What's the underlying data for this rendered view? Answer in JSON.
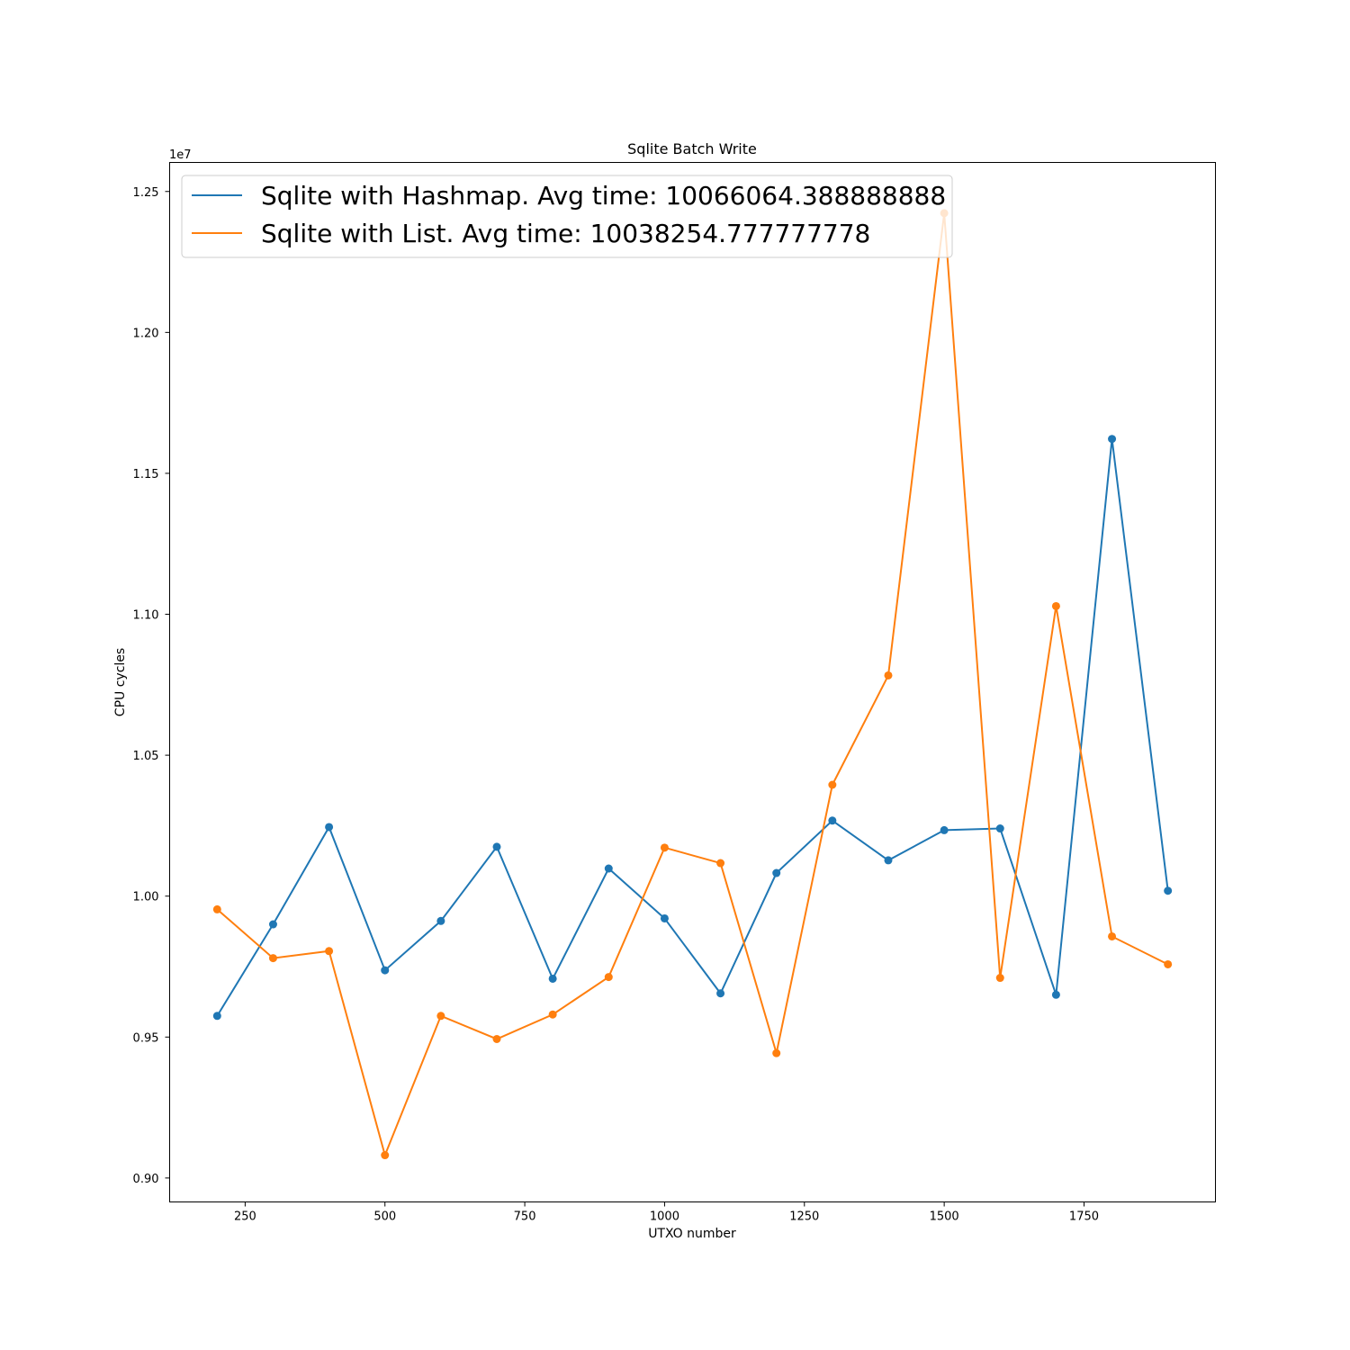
{
  "chart_data": {
    "type": "line",
    "title": "Sqlite Batch Write",
    "xlabel": "UTXO number",
    "ylabel": "CPU cycles",
    "y_offset_text": "1e7",
    "y_scale": 10000000,
    "xlim": [
      115,
      1985
    ],
    "ylim": [
      0.8915,
      1.2603
    ],
    "x_ticks": [
      250,
      500,
      750,
      1000,
      1250,
      1500,
      1750
    ],
    "x_tick_labels": [
      "250",
      "500",
      "750",
      "1000",
      "1250",
      "1500",
      "1750"
    ],
    "y_ticks": [
      0.9,
      0.95,
      1.0,
      1.05,
      1.1,
      1.15,
      1.2,
      1.25
    ],
    "y_tick_labels": [
      "0.90",
      "0.95",
      "1.00",
      "1.05",
      "1.10",
      "1.15",
      "1.20",
      "1.25"
    ],
    "grid": false,
    "legend_position": "top-left",
    "x": [
      200,
      300,
      400,
      500,
      600,
      700,
      800,
      900,
      1000,
      1100,
      1200,
      1300,
      1400,
      1500,
      1600,
      1700,
      1800,
      1900
    ],
    "series": [
      {
        "name": "Sqlite with Hashmap. Avg time: 10066064.388888888",
        "color": "#1f77b4",
        "values": [
          0.9575,
          0.99,
          1.0245,
          0.9737,
          0.9912,
          1.0175,
          0.9707,
          1.0098,
          0.9921,
          0.9655,
          1.0082,
          1.0268,
          1.0127,
          1.0234,
          1.024,
          0.965,
          1.1622,
          1.0019
        ]
      },
      {
        "name": "Sqlite with List. Avg time: 10038254.777777778",
        "color": "#ff7f0e",
        "values": [
          0.9953,
          0.978,
          0.9805,
          0.9081,
          0.9575,
          0.9493,
          0.958,
          0.9713,
          1.0172,
          1.0117,
          0.9443,
          1.0395,
          1.0783,
          1.2423,
          0.971,
          1.1029,
          0.9857,
          0.9758
        ]
      }
    ]
  }
}
